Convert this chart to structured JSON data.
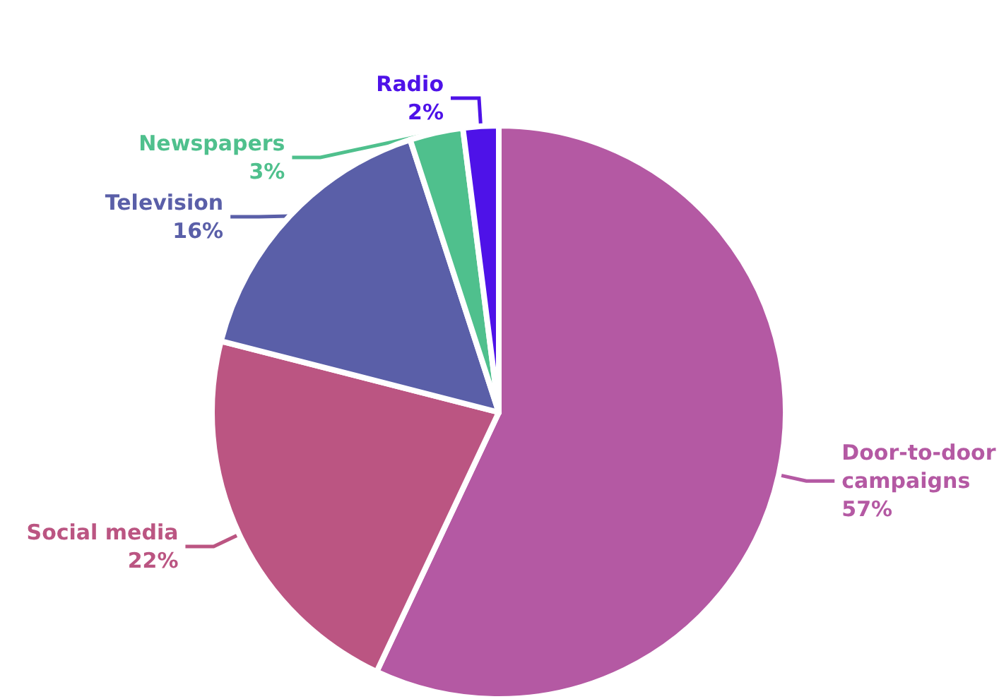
{
  "chart_data": {
    "type": "pie",
    "categories": [
      "Door-to-door campaigns",
      "Social media",
      "Television",
      "Newspapers",
      "Radio"
    ],
    "values": [
      57,
      22,
      16,
      3,
      2
    ],
    "value_labels": [
      "57%",
      "22%",
      "16%",
      "3%",
      "2%"
    ],
    "colors": [
      "#b459a3",
      "#bb5582",
      "#5a5fa8",
      "#4fc08d",
      "#4e12e8"
    ],
    "legend": false
  }
}
